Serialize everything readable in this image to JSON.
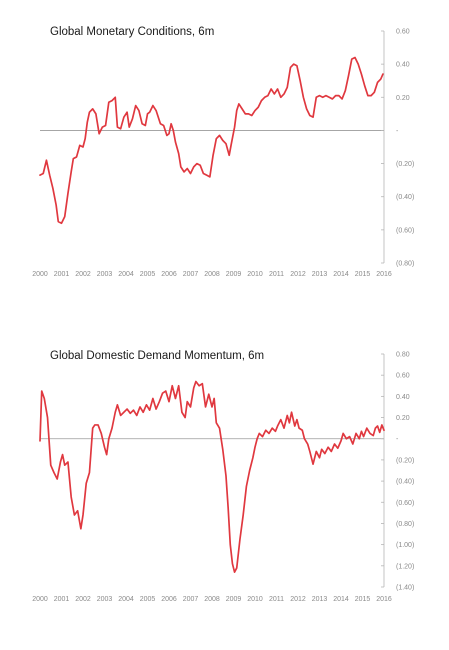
{
  "chart_data": [
    {
      "type": "line",
      "title": "Global Monetary Conditions, 6m",
      "xlabel": "",
      "ylabel": "",
      "x_ticks": [
        "2000",
        "2001",
        "2002",
        "2003",
        "2004",
        "2005",
        "2006",
        "2007",
        "2008",
        "2009",
        "2010",
        "2011",
        "2012",
        "2013",
        "2014",
        "2015",
        "2016"
      ],
      "y_ticks": [
        0.6,
        0.4,
        0.2,
        0,
        -0.2,
        -0.4,
        -0.6,
        -0.8
      ],
      "y_tick_labels": [
        "0.60",
        "0.40",
        "0.20",
        "-",
        "(0.20)",
        "(0.40)",
        "(0.60)",
        "(0.80)"
      ],
      "xlim": [
        2000,
        2016
      ],
      "ylim": [
        -0.8,
        0.6
      ],
      "grid": false,
      "series": [
        {
          "color": "#e0383f",
          "points": [
            [
              2000.0,
              -0.27
            ],
            [
              2000.15,
              -0.26
            ],
            [
              2000.3,
              -0.18
            ],
            [
              2000.45,
              -0.27
            ],
            [
              2000.6,
              -0.35
            ],
            [
              2000.75,
              -0.45
            ],
            [
              2000.85,
              -0.55
            ],
            [
              2001.0,
              -0.56
            ],
            [
              2001.15,
              -0.52
            ],
            [
              2001.3,
              -0.38
            ],
            [
              2001.45,
              -0.25
            ],
            [
              2001.55,
              -0.17
            ],
            [
              2001.7,
              -0.16
            ],
            [
              2001.85,
              -0.09
            ],
            [
              2002.0,
              -0.1
            ],
            [
              2002.1,
              -0.05
            ],
            [
              2002.2,
              0.05
            ],
            [
              2002.3,
              0.11
            ],
            [
              2002.45,
              0.13
            ],
            [
              2002.6,
              0.1
            ],
            [
              2002.75,
              -0.02
            ],
            [
              2002.9,
              0.02
            ],
            [
              2003.05,
              0.03
            ],
            [
              2003.2,
              0.17
            ],
            [
              2003.35,
              0.18
            ],
            [
              2003.5,
              0.2
            ],
            [
              2003.6,
              0.02
            ],
            [
              2003.75,
              0.01
            ],
            [
              2003.9,
              0.08
            ],
            [
              2004.05,
              0.11
            ],
            [
              2004.15,
              0.02
            ],
            [
              2004.3,
              0.07
            ],
            [
              2004.45,
              0.15
            ],
            [
              2004.6,
              0.12
            ],
            [
              2004.75,
              0.04
            ],
            [
              2004.9,
              0.03
            ],
            [
              2005.0,
              0.1
            ],
            [
              2005.1,
              0.11
            ],
            [
              2005.25,
              0.15
            ],
            [
              2005.4,
              0.12
            ],
            [
              2005.5,
              0.08
            ],
            [
              2005.6,
              0.04
            ],
            [
              2005.75,
              0.03
            ],
            [
              2005.9,
              -0.03
            ],
            [
              2006.0,
              -0.02
            ],
            [
              2006.1,
              0.04
            ],
            [
              2006.2,
              0.0
            ],
            [
              2006.3,
              -0.07
            ],
            [
              2006.45,
              -0.14
            ],
            [
              2006.55,
              -0.22
            ],
            [
              2006.7,
              -0.25
            ],
            [
              2006.85,
              -0.23
            ],
            [
              2007.0,
              -0.26
            ],
            [
              2007.15,
              -0.22
            ],
            [
              2007.3,
              -0.2
            ],
            [
              2007.45,
              -0.21
            ],
            [
              2007.6,
              -0.26
            ],
            [
              2007.75,
              -0.27
            ],
            [
              2007.9,
              -0.28
            ],
            [
              2008.05,
              -0.15
            ],
            [
              2008.2,
              -0.05
            ],
            [
              2008.35,
              -0.03
            ],
            [
              2008.5,
              -0.06
            ],
            [
              2008.65,
              -0.08
            ],
            [
              2008.8,
              -0.15
            ],
            [
              2008.9,
              -0.08
            ],
            [
              2009.05,
              0.02
            ],
            [
              2009.15,
              0.12
            ],
            [
              2009.25,
              0.16
            ],
            [
              2009.4,
              0.13
            ],
            [
              2009.55,
              0.1
            ],
            [
              2009.7,
              0.1
            ],
            [
              2009.85,
              0.09
            ],
            [
              2010.0,
              0.12
            ],
            [
              2010.15,
              0.14
            ],
            [
              2010.3,
              0.18
            ],
            [
              2010.45,
              0.2
            ],
            [
              2010.6,
              0.21
            ],
            [
              2010.75,
              0.25
            ],
            [
              2010.9,
              0.22
            ],
            [
              2011.05,
              0.25
            ],
            [
              2011.2,
              0.2
            ],
            [
              2011.35,
              0.22
            ],
            [
              2011.5,
              0.26
            ],
            [
              2011.65,
              0.38
            ],
            [
              2011.8,
              0.4
            ],
            [
              2011.95,
              0.39
            ],
            [
              2012.1,
              0.3
            ],
            [
              2012.25,
              0.2
            ],
            [
              2012.4,
              0.13
            ],
            [
              2012.55,
              0.09
            ],
            [
              2012.7,
              0.08
            ],
            [
              2012.85,
              0.2
            ],
            [
              2013.0,
              0.21
            ],
            [
              2013.15,
              0.2
            ],
            [
              2013.3,
              0.21
            ],
            [
              2013.45,
              0.2
            ],
            [
              2013.6,
              0.19
            ],
            [
              2013.75,
              0.21
            ],
            [
              2013.9,
              0.21
            ],
            [
              2014.05,
              0.19
            ],
            [
              2014.2,
              0.24
            ],
            [
              2014.35,
              0.33
            ],
            [
              2014.5,
              0.43
            ],
            [
              2014.65,
              0.44
            ],
            [
              2014.8,
              0.4
            ],
            [
              2014.95,
              0.34
            ],
            [
              2015.1,
              0.27
            ],
            [
              2015.25,
              0.21
            ],
            [
              2015.4,
              0.21
            ],
            [
              2015.55,
              0.23
            ],
            [
              2015.7,
              0.29
            ],
            [
              2015.85,
              0.31
            ],
            [
              2015.95,
              0.34
            ]
          ]
        }
      ]
    },
    {
      "type": "line",
      "title": "Global Domestic Demand Momentum, 6m",
      "xlabel": "",
      "ylabel": "",
      "x_ticks": [
        "2000",
        "2001",
        "2002",
        "2003",
        "2004",
        "2005",
        "2006",
        "2007",
        "2008",
        "2009",
        "2010",
        "2011",
        "2012",
        "2013",
        "2014",
        "2015",
        "2016"
      ],
      "y_ticks": [
        0.8,
        0.6,
        0.4,
        0.2,
        0,
        -0.2,
        -0.4,
        -0.6,
        -0.8,
        -1.0,
        -1.2,
        -1.4
      ],
      "y_tick_labels": [
        "0.80",
        "0.60",
        "0.40",
        "0.20",
        "-",
        "(0.20)",
        "(0.40)",
        "(0.60)",
        "(0.80)",
        "(1.00)",
        "(1.20)",
        "(1.40)"
      ],
      "xlim": [
        2000,
        2016
      ],
      "ylim": [
        -1.4,
        0.8
      ],
      "grid": false,
      "series": [
        {
          "color": "#e0383f",
          "points": [
            [
              2000.0,
              -0.02
            ],
            [
              2000.08,
              0.45
            ],
            [
              2000.2,
              0.38
            ],
            [
              2000.35,
              0.2
            ],
            [
              2000.5,
              -0.25
            ],
            [
              2000.65,
              -0.32
            ],
            [
              2000.8,
              -0.38
            ],
            [
              2000.95,
              -0.22
            ],
            [
              2001.05,
              -0.15
            ],
            [
              2001.15,
              -0.25
            ],
            [
              2001.3,
              -0.22
            ],
            [
              2001.45,
              -0.55
            ],
            [
              2001.6,
              -0.72
            ],
            [
              2001.75,
              -0.68
            ],
            [
              2001.9,
              -0.85
            ],
            [
              2002.0,
              -0.72
            ],
            [
              2002.15,
              -0.42
            ],
            [
              2002.3,
              -0.32
            ],
            [
              2002.45,
              0.1
            ],
            [
              2002.55,
              0.13
            ],
            [
              2002.7,
              0.13
            ],
            [
              2002.85,
              0.05
            ],
            [
              2003.0,
              -0.08
            ],
            [
              2003.1,
              -0.15
            ],
            [
              2003.2,
              0.0
            ],
            [
              2003.35,
              0.1
            ],
            [
              2003.5,
              0.25
            ],
            [
              2003.6,
              0.32
            ],
            [
              2003.75,
              0.22
            ],
            [
              2003.9,
              0.25
            ],
            [
              2004.05,
              0.28
            ],
            [
              2004.2,
              0.24
            ],
            [
              2004.35,
              0.27
            ],
            [
              2004.5,
              0.22
            ],
            [
              2004.65,
              0.3
            ],
            [
              2004.8,
              0.25
            ],
            [
              2004.95,
              0.32
            ],
            [
              2005.1,
              0.27
            ],
            [
              2005.25,
              0.38
            ],
            [
              2005.4,
              0.28
            ],
            [
              2005.55,
              0.35
            ],
            [
              2005.7,
              0.43
            ],
            [
              2005.85,
              0.45
            ],
            [
              2006.0,
              0.35
            ],
            [
              2006.15,
              0.5
            ],
            [
              2006.3,
              0.38
            ],
            [
              2006.45,
              0.5
            ],
            [
              2006.6,
              0.25
            ],
            [
              2006.75,
              0.2
            ],
            [
              2006.85,
              0.35
            ],
            [
              2007.0,
              0.3
            ],
            [
              2007.15,
              0.48
            ],
            [
              2007.25,
              0.54
            ],
            [
              2007.4,
              0.5
            ],
            [
              2007.55,
              0.52
            ],
            [
              2007.7,
              0.3
            ],
            [
              2007.85,
              0.42
            ],
            [
              2008.0,
              0.3
            ],
            [
              2008.1,
              0.38
            ],
            [
              2008.2,
              0.15
            ],
            [
              2008.35,
              0.1
            ],
            [
              2008.5,
              -0.1
            ],
            [
              2008.65,
              -0.35
            ],
            [
              2008.75,
              -0.65
            ],
            [
              2008.85,
              -1.0
            ],
            [
              2008.95,
              -1.18
            ],
            [
              2009.05,
              -1.26
            ],
            [
              2009.15,
              -1.22
            ],
            [
              2009.3,
              -0.95
            ],
            [
              2009.45,
              -0.72
            ],
            [
              2009.6,
              -0.45
            ],
            [
              2009.75,
              -0.3
            ],
            [
              2009.9,
              -0.18
            ],
            [
              2010.0,
              -0.08
            ],
            [
              2010.1,
              0.0
            ],
            [
              2010.2,
              0.05
            ],
            [
              2010.35,
              0.02
            ],
            [
              2010.5,
              0.08
            ],
            [
              2010.65,
              0.05
            ],
            [
              2010.8,
              0.1
            ],
            [
              2010.95,
              0.07
            ],
            [
              2011.05,
              0.12
            ],
            [
              2011.2,
              0.18
            ],
            [
              2011.35,
              0.1
            ],
            [
              2011.5,
              0.22
            ],
            [
              2011.6,
              0.15
            ],
            [
              2011.7,
              0.25
            ],
            [
              2011.85,
              0.12
            ],
            [
              2011.95,
              0.18
            ],
            [
              2012.05,
              0.1
            ],
            [
              2012.2,
              0.08
            ],
            [
              2012.3,
              0.0
            ],
            [
              2012.45,
              -0.05
            ],
            [
              2012.55,
              -0.12
            ],
            [
              2012.7,
              -0.24
            ],
            [
              2012.85,
              -0.12
            ],
            [
              2013.0,
              -0.18
            ],
            [
              2013.1,
              -0.1
            ],
            [
              2013.25,
              -0.14
            ],
            [
              2013.4,
              -0.08
            ],
            [
              2013.55,
              -0.12
            ],
            [
              2013.7,
              -0.05
            ],
            [
              2013.85,
              -0.09
            ],
            [
              2014.0,
              -0.02
            ],
            [
              2014.1,
              0.05
            ],
            [
              2014.25,
              0.0
            ],
            [
              2014.4,
              0.02
            ],
            [
              2014.55,
              -0.05
            ],
            [
              2014.7,
              0.05
            ],
            [
              2014.85,
              0.0
            ],
            [
              2014.95,
              0.07
            ],
            [
              2015.05,
              0.02
            ],
            [
              2015.2,
              0.1
            ],
            [
              2015.35,
              0.05
            ],
            [
              2015.5,
              0.03
            ],
            [
              2015.6,
              0.1
            ],
            [
              2015.7,
              0.12
            ],
            [
              2015.8,
              0.06
            ],
            [
              2015.9,
              0.13
            ],
            [
              2016.0,
              0.08
            ]
          ]
        }
      ]
    }
  ]
}
